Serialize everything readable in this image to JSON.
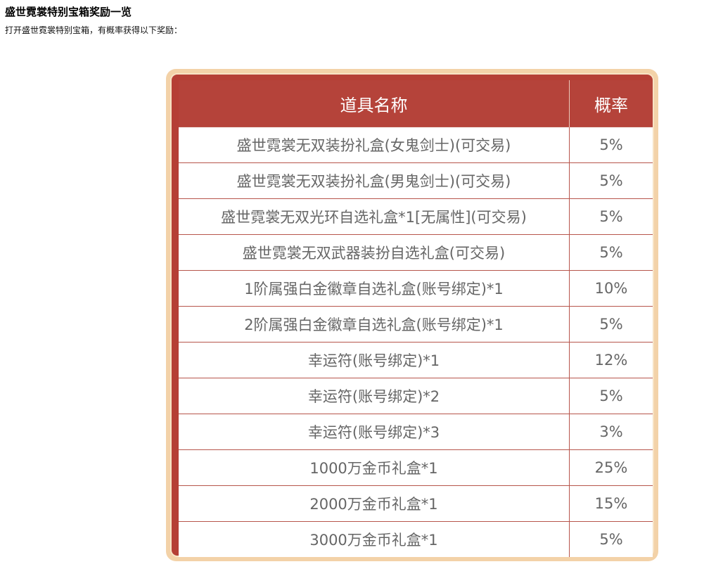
{
  "title": "盛世霓裳特别宝箱奖励一览",
  "subtitle": "打开盛世霓裳特别宝箱，有概率获得以下奖励：",
  "table": {
    "headers": [
      "道具名称",
      "概率"
    ],
    "rows": [
      [
        "盛世霓裳无双装扮礼盒(女鬼剑士)(可交易)",
        "5%"
      ],
      [
        "盛世霓裳无双装扮礼盒(男鬼剑士)(可交易)",
        "5%"
      ],
      [
        "盛世霓裳无双光环自选礼盒*1[无属性](可交易)",
        "5%"
      ],
      [
        "盛世霓裳无双武器装扮自选礼盒(可交易)",
        "5%"
      ],
      [
        "1阶属强白金徽章自选礼盒(账号绑定)*1",
        "10%"
      ],
      [
        "2阶属强白金徽章自选礼盒(账号绑定)*1",
        "5%"
      ],
      [
        "幸运符(账号绑定)*1",
        "12%"
      ],
      [
        "幸运符(账号绑定)*2",
        "5%"
      ],
      [
        "幸运符(账号绑定)*3",
        "3%"
      ],
      [
        "1000万金币礼盒*1",
        "25%"
      ],
      [
        "2000万金币礼盒*1",
        "15%"
      ],
      [
        "3000万金币礼盒*1",
        "5%"
      ]
    ]
  }
}
